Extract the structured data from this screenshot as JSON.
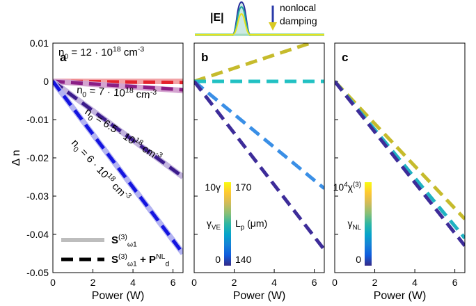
{
  "inset": {
    "label": "|E|",
    "note": [
      "nonlocal",
      "damping"
    ]
  },
  "chart_data": [
    {
      "type": "line",
      "panel": "a",
      "xlabel": "Power (W)",
      "ylabel": "Δ n",
      "xlim": [
        0,
        6.5
      ],
      "ylim": [
        -0.05,
        0.01
      ],
      "xticks": [
        0,
        2,
        4,
        6
      ],
      "yticks": [
        0.01,
        0,
        -0.01,
        -0.02,
        -0.03,
        -0.04,
        -0.05
      ],
      "ytick_labels": true,
      "series": [
        {
          "color": "#f2a3a6",
          "dash": false,
          "x": [
            0,
            6.5
          ],
          "values": [
            0,
            0
          ]
        },
        {
          "color": "#e4232d",
          "dash": true,
          "x": [
            0,
            6.5
          ],
          "values": [
            0,
            -0.0003
          ]
        },
        {
          "color": "#d4a4d0",
          "dash": false,
          "x": [
            0,
            6.5
          ],
          "values": [
            0,
            -0.0024
          ]
        },
        {
          "color": "#8b1e85",
          "dash": true,
          "x": [
            0,
            6.5
          ],
          "values": [
            0,
            -0.0022
          ]
        },
        {
          "color": "#c3b4de",
          "dash": false,
          "x": [
            0,
            6.5
          ],
          "values": [
            0,
            -0.025
          ]
        },
        {
          "color": "#3b1b8c",
          "dash": true,
          "x": [
            0,
            6.5
          ],
          "values": [
            0,
            -0.025
          ]
        },
        {
          "color": "#b3b3f2",
          "dash": false,
          "x": [
            0,
            6.5
          ],
          "values": [
            0,
            -0.045
          ]
        },
        {
          "color": "#1414e0",
          "dash": true,
          "x": [
            0,
            6.5
          ],
          "values": [
            0,
            -0.045
          ]
        }
      ],
      "annotations": [
        {
          "color": "#e4232d",
          "parts": [
            "n",
            "0",
            " = 12 · 10",
            "18",
            " cm",
            "-3"
          ]
        },
        {
          "color": "#8b1e85",
          "parts": [
            "n",
            "0",
            " = 7 · 10",
            "18",
            " cm",
            "-3"
          ]
        },
        {
          "color": "#3b1b8c",
          "parts": [
            "n",
            "0",
            " = 6.5 · 10",
            "18",
            " cm",
            "-3"
          ]
        },
        {
          "color": "#1414e0",
          "parts": [
            "n",
            "0",
            " = 6 · 10",
            "18",
            " cm",
            "-3"
          ]
        }
      ],
      "legend": [
        {
          "color": "#bdbdbd",
          "dash": false,
          "parts": [
            "S",
            "(3)",
            "ω1"
          ]
        },
        {
          "color": "#000000",
          "dash": true,
          "parts": [
            "S",
            "(3)",
            "ω1",
            " + P",
            "NL",
            "d"
          ]
        }
      ]
    },
    {
      "type": "line",
      "panel": "b",
      "xlabel": "Power (W)",
      "xlim": [
        0,
        6.5
      ],
      "ylim": [
        -0.05,
        0.01
      ],
      "xticks": [
        0,
        2,
        4,
        6
      ],
      "yticks": [
        0.01,
        0,
        -0.01,
        -0.02,
        -0.03,
        -0.04,
        -0.05
      ],
      "ytick_labels": false,
      "series": [
        {
          "color": "#c6bb2c",
          "dash": true,
          "x": [
            0,
            5.8
          ],
          "values": [
            0,
            0.01
          ]
        },
        {
          "color": "#22c1c3",
          "dash": true,
          "x": [
            0,
            6.5
          ],
          "values": [
            0,
            0
          ]
        },
        {
          "color": "#3a8fe6",
          "dash": true,
          "x": [
            0,
            6.5
          ],
          "values": [
            0,
            -0.028
          ]
        },
        {
          "color": "#3d2c99",
          "dash": true,
          "x": [
            0,
            6.5
          ],
          "values": [
            0,
            -0.044
          ]
        }
      ],
      "colormap": [
        "#352a87",
        "#0f5cdd",
        "#1481d6",
        "#06a4ca",
        "#2eb7a4",
        "#87bf77",
        "#d1bb59",
        "#fec832",
        "#f9fb0e"
      ],
      "colorbar": {
        "left": {
          "top": "10γ",
          "title": [
            "γ",
            "VE"
          ],
          "bottom": 0
        },
        "right": {
          "top": 170,
          "title": [
            "L",
            "p",
            " (μm)"
          ],
          "bottom": 140
        }
      }
    },
    {
      "type": "line",
      "panel": "c",
      "xlabel": "Power (W)",
      "xlim": [
        0,
        6.5
      ],
      "ylim": [
        -0.05,
        0.01
      ],
      "xticks": [
        0,
        2,
        4,
        6
      ],
      "yticks": [
        0.01,
        0,
        -0.01,
        -0.02,
        -0.03,
        -0.04,
        -0.05
      ],
      "ytick_labels": false,
      "series": [
        {
          "color": "#c6bb2c",
          "dash": true,
          "x": [
            0,
            6.5
          ],
          "values": [
            0,
            -0.036
          ]
        },
        {
          "color": "#20b2c2",
          "dash": true,
          "x": [
            0,
            6.5
          ],
          "values": [
            0,
            -0.041
          ]
        },
        {
          "color": "#3d2c99",
          "dash": true,
          "x": [
            0,
            6.5
          ],
          "values": [
            0,
            -0.043
          ]
        }
      ],
      "colormap": [
        "#352a87",
        "#0f5cdd",
        "#1481d6",
        "#06a4ca",
        "#2eb7a4",
        "#87bf77",
        "#d1bb59",
        "#fec832",
        "#f9fb0e"
      ],
      "colorbar": {
        "left": {
          "top": [
            "10",
            "4",
            "χ",
            "(3)"
          ],
          "title": [
            "γ",
            "NL"
          ],
          "bottom": 0
        }
      }
    }
  ]
}
